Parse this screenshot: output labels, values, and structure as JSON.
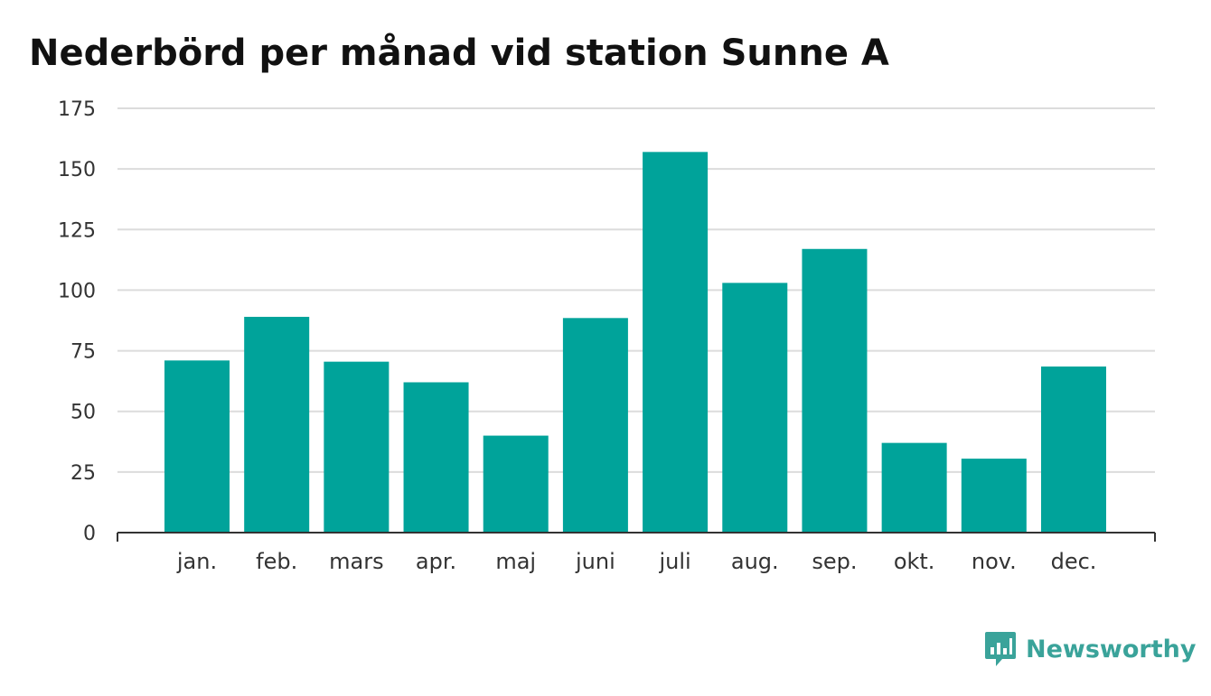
{
  "chart_data": {
    "type": "bar",
    "title": "Nederbörd per månad vid station Sunne A",
    "xlabel": "",
    "ylabel": "",
    "categories": [
      "jan.",
      "feb.",
      "mars",
      "apr.",
      "maj",
      "juni",
      "juli",
      "aug.",
      "sep.",
      "okt.",
      "nov.",
      "dec."
    ],
    "values": [
      71,
      89,
      70.5,
      62,
      40,
      88.5,
      157,
      103,
      117,
      37,
      30.5,
      68.5
    ],
    "ylim": [
      0,
      175
    ],
    "yticks": [
      "0",
      "25",
      "50",
      "75",
      "100",
      "125",
      "150",
      "175"
    ],
    "grid": true,
    "bar_color": "#00a39a",
    "grid_color": "#dcdcdc"
  },
  "brand": {
    "name": "Newsworthy",
    "color": "#3aa39a",
    "icon": "newsworthy-logo-icon"
  }
}
